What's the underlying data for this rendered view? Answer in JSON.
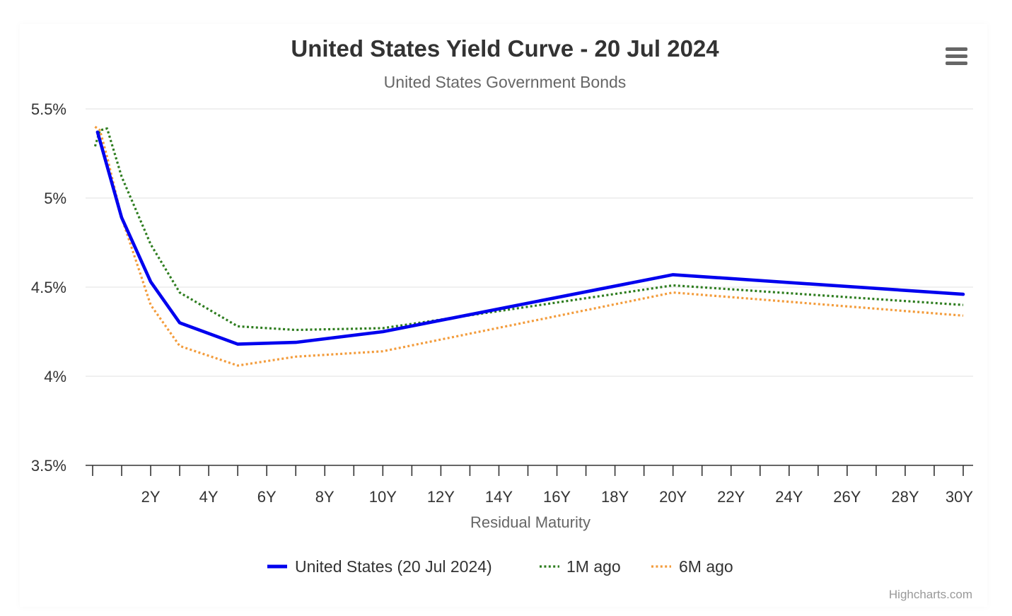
{
  "chart_data": {
    "type": "line",
    "title": "United States Yield Curve - 20 Jul 2024",
    "subtitle": "United States Government Bonds",
    "xlabel": "Residual Maturity",
    "ylabel": "",
    "x_ticks": [
      "2Y",
      "4Y",
      "6Y",
      "8Y",
      "10Y",
      "12Y",
      "14Y",
      "16Y",
      "18Y",
      "20Y",
      "22Y",
      "24Y",
      "26Y",
      "28Y",
      "30Y"
    ],
    "y_ticks": [
      "3.5%",
      "4%",
      "4.5%",
      "5%",
      "5.5%"
    ],
    "xlim": [
      0,
      30
    ],
    "ylim": [
      3.5,
      5.5
    ],
    "grid": true,
    "legend_position": "bottom",
    "series": [
      {
        "name": "United States (20 Jul 2024)",
        "color": "#0000ee",
        "dash": "solid",
        "points": [
          [
            0.167,
            5.37
          ],
          [
            1,
            4.89
          ],
          [
            2,
            4.53
          ],
          [
            3,
            4.3
          ],
          [
            5,
            4.18
          ],
          [
            7,
            4.19
          ],
          [
            10,
            4.25
          ],
          [
            20,
            4.57
          ],
          [
            30,
            4.46
          ]
        ]
      },
      {
        "name": "1M ago",
        "color": "#2e7d1f",
        "dash": "dot",
        "points": [
          [
            0.083,
            5.29
          ],
          [
            0.25,
            5.38
          ],
          [
            0.5,
            5.39
          ],
          [
            1,
            5.12
          ],
          [
            2,
            4.74
          ],
          [
            3,
            4.47
          ],
          [
            5,
            4.28
          ],
          [
            7,
            4.26
          ],
          [
            10,
            4.27
          ],
          [
            20,
            4.51
          ],
          [
            30,
            4.4
          ]
        ]
      },
      {
        "name": "6M ago",
        "color": "#f39c3c",
        "dash": "dot",
        "points": [
          [
            0.083,
            5.4
          ],
          [
            0.25,
            5.38
          ],
          [
            0.5,
            5.23
          ],
          [
            1,
            4.89
          ],
          [
            2,
            4.4
          ],
          [
            3,
            4.17
          ],
          [
            5,
            4.06
          ],
          [
            7,
            4.11
          ],
          [
            10,
            4.14
          ],
          [
            20,
            4.47
          ],
          [
            30,
            4.34
          ]
        ]
      }
    ]
  },
  "credits": "Highcharts.com",
  "menu": {
    "icon": "hamburger-menu-icon"
  }
}
